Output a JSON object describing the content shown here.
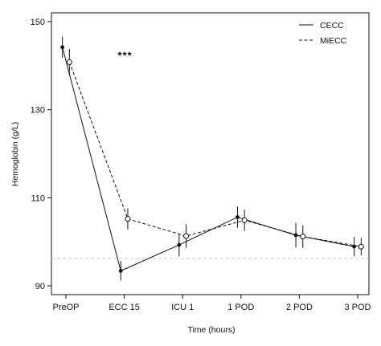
{
  "chart_data": {
    "type": "line",
    "categories": [
      "PreOP",
      "ECC 15",
      "ICU 1",
      "1 POD",
      "2 POD",
      "3 POD"
    ],
    "series": [
      {
        "name": "CECC",
        "values": [
          144.2,
          93.4,
          99.3,
          105.6,
          101.5,
          98.9
        ],
        "errors": [
          2.4,
          2.2,
          2.6,
          2.4,
          2.8,
          2.2
        ],
        "line_style": "solid",
        "marker": "filled",
        "x_offset": -0.06
      },
      {
        "name": "MiECC",
        "values": [
          140.8,
          105.2,
          101.3,
          104.9,
          101.2,
          98.9
        ],
        "errors": [
          3.0,
          2.4,
          2.7,
          2.4,
          2.6,
          2.0
        ],
        "line_style": "dashed",
        "marker": "open",
        "x_offset": 0.06
      }
    ],
    "xlabel": "Time (hours)",
    "ylabel": "Hemoglobin (g/L)",
    "ylim": [
      88,
      152
    ],
    "yticks": [
      90,
      110,
      130,
      150
    ],
    "reference_line": 96.2,
    "annotation": "***",
    "legend_position": "top-right",
    "grid": false
  }
}
